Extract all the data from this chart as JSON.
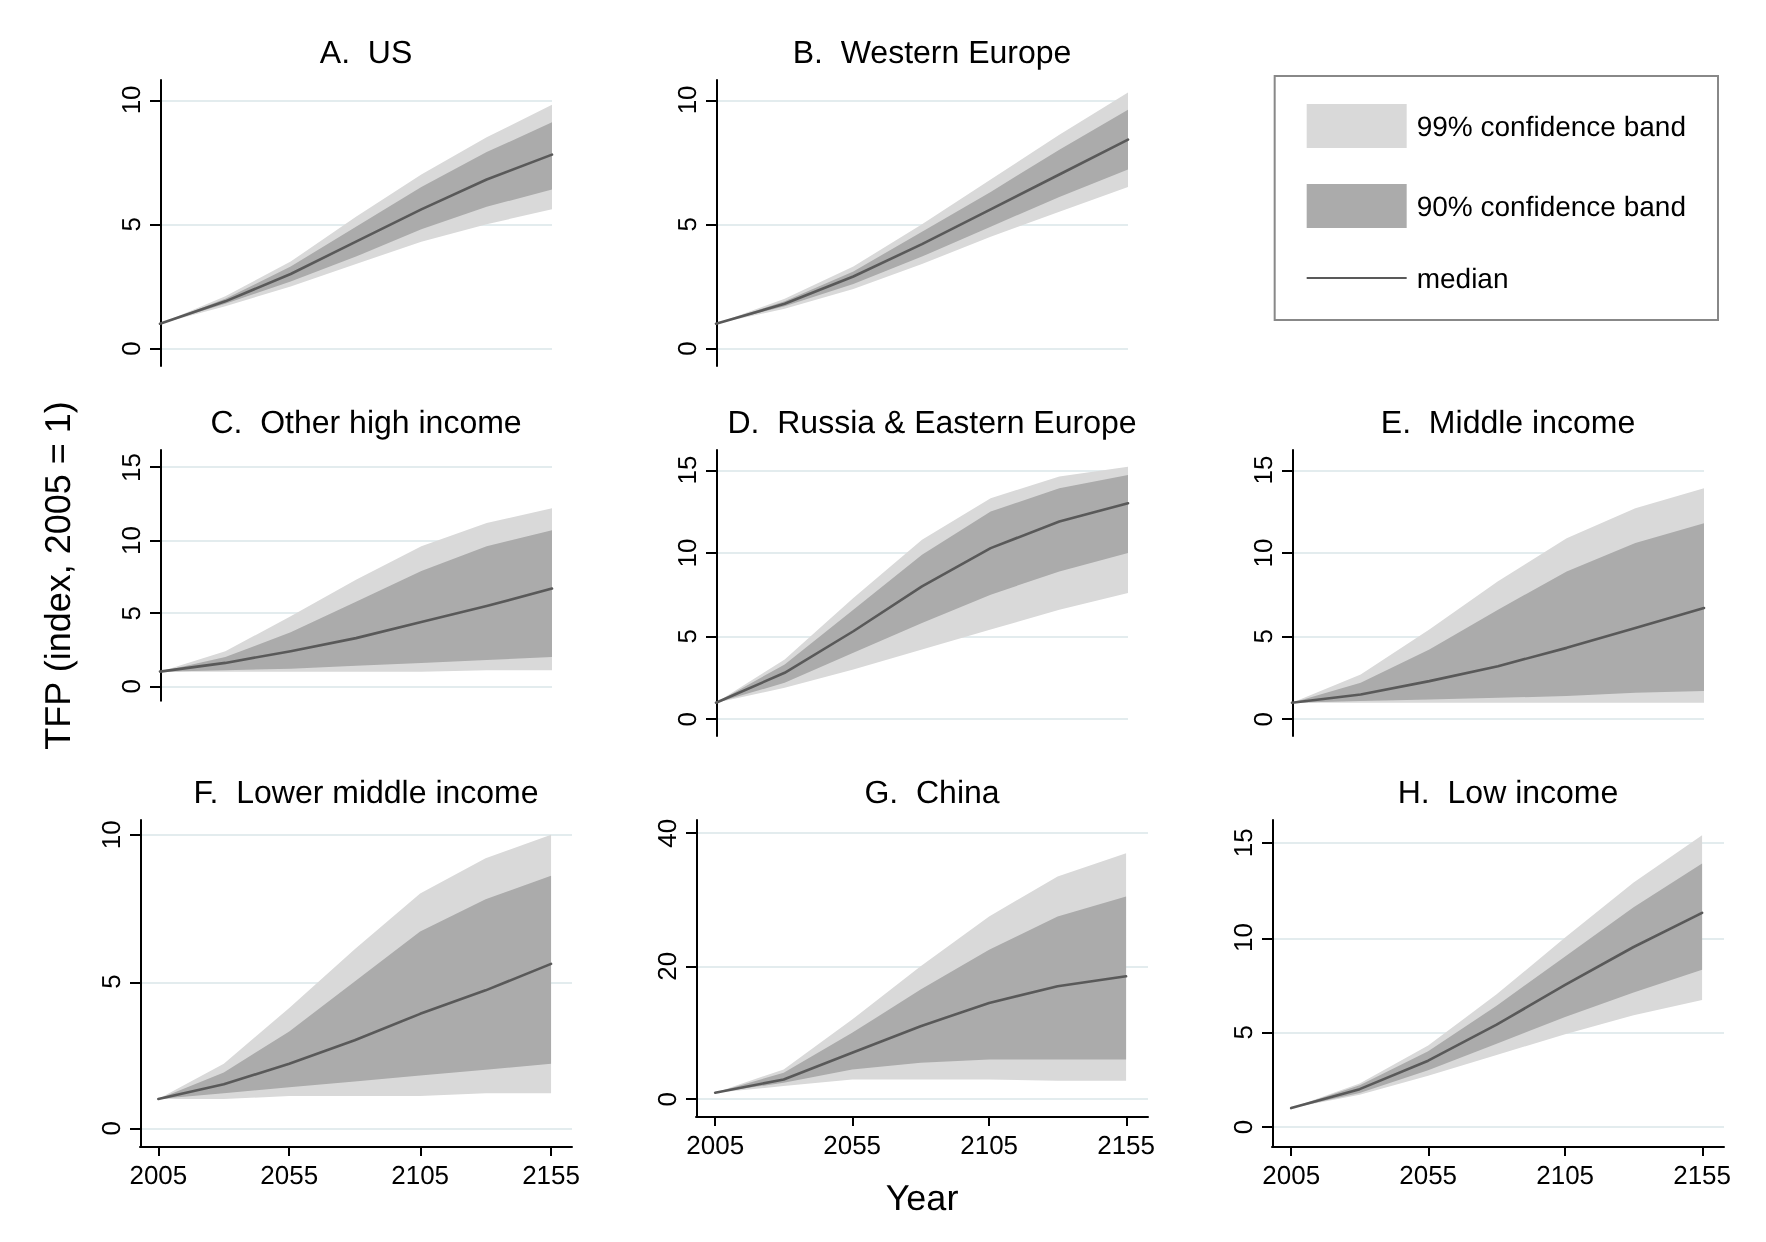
{
  "chart_data": [
    {
      "type": "line",
      "title": "A.  US",
      "x": [
        2005,
        2030,
        2055,
        2080,
        2105,
        2130,
        2155
      ],
      "ylim": [
        -0.7,
        10.8
      ],
      "yticks": [
        0,
        5,
        10
      ],
      "grid": "y",
      "tick_labels": "y",
      "series": [
        {
          "type": "area",
          "color": "#d9d9d9",
          "values": [
            null,
            null,
            null,
            null,
            null,
            null,
            null
          ],
          "lower": [
            1,
            1.7,
            2.5,
            3.4,
            4.3,
            5.0,
            5.6
          ],
          "upper": [
            1,
            2.1,
            3.5,
            5.3,
            7.0,
            8.5,
            9.8
          ]
        },
        {
          "type": "area",
          "color": "#ababab",
          "values": [
            null,
            null,
            null,
            null,
            null,
            null,
            null
          ],
          "lower": [
            1,
            1.8,
            2.7,
            3.7,
            4.8,
            5.7,
            6.4
          ],
          "upper": [
            1,
            2.0,
            3.3,
            4.9,
            6.5,
            7.9,
            9.1
          ]
        },
        {
          "type": "line",
          "color": "#595959",
          "values": [
            1,
            1.9,
            3.0,
            4.3,
            5.6,
            6.8,
            7.8
          ]
        }
      ]
    },
    {
      "type": "line",
      "title": "B.  Western Europe",
      "x": [
        2005,
        2030,
        2055,
        2080,
        2105,
        2130,
        2155
      ],
      "ylim": [
        -0.7,
        10.8
      ],
      "yticks": [
        0,
        5,
        10
      ],
      "grid": "y",
      "tick_labels": "y",
      "legend": "right",
      "series": [
        {
          "type": "area",
          "name": "99% confidence band",
          "color": "#d9d9d9",
          "values": [
            null,
            null,
            null,
            null,
            null,
            null,
            null
          ],
          "lower": [
            1,
            1.6,
            2.4,
            3.4,
            4.5,
            5.5,
            6.5
          ],
          "upper": [
            1,
            2.0,
            3.3,
            5.0,
            6.8,
            8.6,
            10.3
          ]
        },
        {
          "type": "area",
          "name": "90% confidence band",
          "color": "#ababab",
          "values": [
            null,
            null,
            null,
            null,
            null,
            null,
            null
          ],
          "lower": [
            1,
            1.7,
            2.6,
            3.7,
            4.9,
            6.1,
            7.2
          ],
          "upper": [
            1,
            1.9,
            3.1,
            4.7,
            6.3,
            8.0,
            9.6
          ]
        },
        {
          "type": "line",
          "name": "median",
          "color": "#595959",
          "values": [
            1,
            1.8,
            2.9,
            4.2,
            5.6,
            7.0,
            8.4
          ]
        }
      ]
    },
    {
      "type": "line",
      "title": "C.  Other high income",
      "ylabel": "TFP (index, 2005 = 1)",
      "x": [
        2005,
        2030,
        2055,
        2080,
        2105,
        2130,
        2155
      ],
      "ylim": [
        -1,
        16.2
      ],
      "yticks": [
        0,
        5,
        10,
        15
      ],
      "grid": "y",
      "tick_labels": "y",
      "series": [
        {
          "type": "area",
          "color": "#d9d9d9",
          "values": [
            null,
            null,
            null,
            null,
            null,
            null,
            null
          ],
          "lower": [
            1,
            1.0,
            1.0,
            1.0,
            1.0,
            1.1,
            1.1
          ],
          "upper": [
            1,
            2.4,
            4.8,
            7.3,
            9.6,
            11.2,
            12.2
          ]
        },
        {
          "type": "area",
          "color": "#ababab",
          "values": [
            null,
            null,
            null,
            null,
            null,
            null,
            null
          ],
          "lower": [
            1,
            1.1,
            1.2,
            1.4,
            1.6,
            1.8,
            2.0
          ],
          "upper": [
            1,
            2.0,
            3.7,
            5.8,
            7.9,
            9.6,
            10.7
          ]
        },
        {
          "type": "line",
          "color": "#595959",
          "values": [
            1,
            1.6,
            2.4,
            3.3,
            4.4,
            5.5,
            6.7
          ]
        }
      ]
    },
    {
      "type": "line",
      "title": "D.  Russia & Eastern Europe",
      "x": [
        2005,
        2030,
        2055,
        2080,
        2105,
        2130,
        2155
      ],
      "ylim": [
        -1,
        16.2
      ],
      "yticks": [
        0,
        5,
        10,
        15
      ],
      "grid": "y",
      "tick_labels": "y",
      "series": [
        {
          "type": "area",
          "color": "#d9d9d9",
          "values": [
            null,
            null,
            null,
            null,
            null,
            null,
            null
          ],
          "lower": [
            1,
            1.9,
            3.0,
            4.2,
            5.4,
            6.6,
            7.6
          ],
          "upper": [
            1,
            3.6,
            7.3,
            10.8,
            13.3,
            14.6,
            15.2
          ]
        },
        {
          "type": "area",
          "color": "#ababab",
          "values": [
            null,
            null,
            null,
            null,
            null,
            null,
            null
          ],
          "lower": [
            1,
            2.2,
            4.0,
            5.8,
            7.5,
            8.9,
            10.0
          ],
          "upper": [
            1,
            3.3,
            6.6,
            9.9,
            12.5,
            13.9,
            14.7
          ]
        },
        {
          "type": "line",
          "color": "#595959",
          "values": [
            1,
            2.8,
            5.3,
            8.0,
            10.3,
            11.9,
            13.0
          ]
        }
      ]
    },
    {
      "type": "line",
      "title": "E.  Middle income",
      "x": [
        2005,
        2030,
        2055,
        2080,
        2105,
        2130,
        2155
      ],
      "ylim": [
        -1,
        16.2
      ],
      "yticks": [
        0,
        5,
        10,
        15
      ],
      "grid": "y",
      "tick_labels": "y",
      "series": [
        {
          "type": "area",
          "color": "#d9d9d9",
          "values": [
            null,
            null,
            null,
            null,
            null,
            null,
            null
          ],
          "lower": [
            1,
            1.0,
            1.0,
            1.0,
            1.0,
            1.0,
            1.0
          ],
          "upper": [
            1,
            2.7,
            5.4,
            8.3,
            10.9,
            12.7,
            13.9
          ]
        },
        {
          "type": "area",
          "color": "#ababab",
          "values": [
            null,
            null,
            null,
            null,
            null,
            null,
            null
          ],
          "lower": [
            1,
            1.1,
            1.2,
            1.3,
            1.4,
            1.6,
            1.7
          ],
          "upper": [
            1,
            2.2,
            4.2,
            6.6,
            8.9,
            10.6,
            11.8
          ]
        },
        {
          "type": "line",
          "color": "#595959",
          "values": [
            1,
            1.5,
            2.3,
            3.2,
            4.3,
            5.5,
            6.7
          ]
        }
      ]
    },
    {
      "type": "line",
      "title": "F.  Lower middle income",
      "x": [
        2005,
        2030,
        2055,
        2080,
        2105,
        2130,
        2155
      ],
      "xlim": [
        1998,
        2163
      ],
      "xticks": [
        2005,
        2055,
        2105,
        2155
      ],
      "ylim": [
        -0.6,
        10.5
      ],
      "yticks": [
        0,
        5,
        10
      ],
      "grid": "y",
      "series": [
        {
          "type": "area",
          "color": "#d9d9d9",
          "values": [
            null,
            null,
            null,
            null,
            null,
            null,
            null
          ],
          "lower": [
            1,
            1.0,
            1.1,
            1.1,
            1.1,
            1.2,
            1.2
          ],
          "upper": [
            1,
            2.2,
            4.1,
            6.1,
            8.0,
            9.2,
            10.0
          ]
        },
        {
          "type": "area",
          "color": "#ababab",
          "values": [
            null,
            null,
            null,
            null,
            null,
            null,
            null
          ],
          "lower": [
            1,
            1.2,
            1.4,
            1.6,
            1.8,
            2.0,
            2.2
          ],
          "upper": [
            1,
            1.9,
            3.3,
            5.0,
            6.7,
            7.8,
            8.6
          ]
        },
        {
          "type": "line",
          "color": "#595959",
          "values": [
            1,
            1.5,
            2.2,
            3.0,
            3.9,
            4.7,
            5.6
          ]
        }
      ]
    },
    {
      "type": "line",
      "title": "G.  China",
      "xlabel": "Year",
      "x": [
        2005,
        2030,
        2055,
        2080,
        2105,
        2130,
        2155
      ],
      "xlim": [
        1998,
        2163
      ],
      "xticks": [
        2005,
        2055,
        2105,
        2155
      ],
      "ylim": [
        -2.5,
        42
      ],
      "yticks": [
        0,
        20,
        40
      ],
      "grid": "y",
      "series": [
        {
          "type": "area",
          "color": "#d9d9d9",
          "values": [
            null,
            null,
            null,
            null,
            null,
            null,
            null
          ],
          "lower": [
            1,
            2,
            3,
            3,
            3,
            2.8,
            2.8
          ],
          "upper": [
            1,
            4.5,
            12,
            20,
            27.5,
            33.5,
            37
          ]
        },
        {
          "type": "area",
          "color": "#ababab",
          "values": [
            null,
            null,
            null,
            null,
            null,
            null,
            null
          ],
          "lower": [
            1,
            2.5,
            4.5,
            5.5,
            6,
            6,
            6
          ],
          "upper": [
            1,
            4,
            10,
            16.5,
            22.5,
            27.5,
            30.5
          ]
        },
        {
          "type": "line",
          "color": "#595959",
          "values": [
            1,
            3,
            7,
            11,
            14.5,
            17,
            18.5
          ]
        }
      ]
    },
    {
      "type": "line",
      "title": "H.  Low income",
      "x": [
        2005,
        2030,
        2055,
        2080,
        2105,
        2130,
        2155
      ],
      "xlim": [
        1998,
        2163
      ],
      "xticks": [
        2005,
        2055,
        2105,
        2155
      ],
      "ylim": [
        -1,
        16.2
      ],
      "yticks": [
        0,
        5,
        10,
        15
      ],
      "grid": "y",
      "series": [
        {
          "type": "area",
          "color": "#d9d9d9",
          "values": [
            null,
            null,
            null,
            null,
            null,
            null,
            null
          ],
          "lower": [
            1,
            1.7,
            2.7,
            3.8,
            4.9,
            5.9,
            6.7
          ],
          "upper": [
            1,
            2.3,
            4.3,
            7.0,
            10.0,
            12.9,
            15.4
          ]
        },
        {
          "type": "area",
          "color": "#ababab",
          "values": [
            null,
            null,
            null,
            null,
            null,
            null,
            null
          ],
          "lower": [
            1,
            1.8,
            3.0,
            4.4,
            5.8,
            7.1,
            8.3
          ],
          "upper": [
            1,
            2.2,
            4.0,
            6.4,
            9.0,
            11.6,
            13.9
          ]
        },
        {
          "type": "line",
          "color": "#595959",
          "values": [
            1,
            2.0,
            3.5,
            5.4,
            7.5,
            9.5,
            11.3
          ]
        }
      ]
    }
  ]
}
